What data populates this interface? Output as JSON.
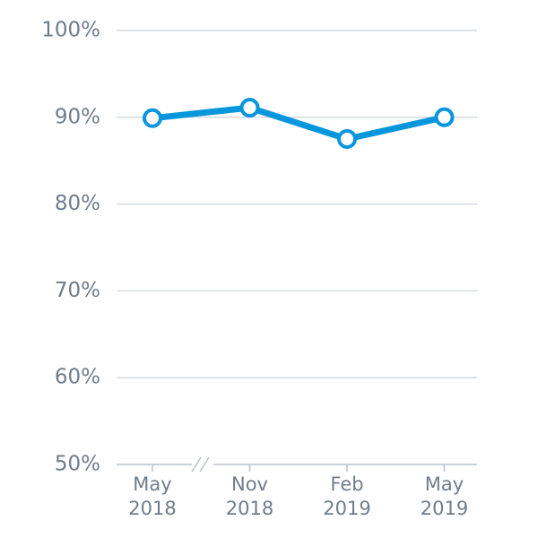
{
  "chart_data": {
    "type": "line",
    "categories": [
      "May 2018",
      "Nov 2018",
      "Feb 2019",
      "May 2019"
    ],
    "series": [
      {
        "color": "#0a96dc",
        "values": [
          89.9,
          91.1,
          87.5,
          90.0
        ]
      }
    ],
    "ylim": [
      50,
      100
    ],
    "yticks": [
      {
        "value": 50,
        "label": "50%"
      },
      {
        "value": 60,
        "label": "60%"
      },
      {
        "value": 70,
        "label": "70%"
      },
      {
        "value": 80,
        "label": "80%"
      },
      {
        "value": 90,
        "label": "90%"
      },
      {
        "value": 100,
        "label": "100%"
      }
    ],
    "grid": true
  }
}
